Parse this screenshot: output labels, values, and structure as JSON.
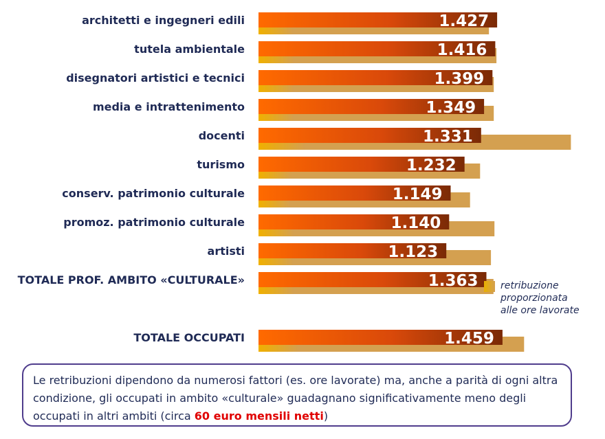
{
  "chart_data": {
    "type": "bar",
    "categories": [
      "architetti e ingegneri edili",
      "tutela ambientale",
      "disegnatori artistici e tecnici",
      "media e intrattenimento",
      "docenti",
      "turismo",
      "conserv. patrimonio culturale",
      "promoz. patrimonio culturale",
      "artisti",
      "TOTALE PROF. AMBITO «CULTURALE»",
      "TOTALE OCCUPATI"
    ],
    "series": [
      {
        "name": "",
        "values": [
          1427,
          1416,
          1399,
          1349,
          1331,
          1232,
          1149,
          1140,
          1123,
          1363,
          1459
        ],
        "labels": [
          "1.427",
          "1.416",
          "1.399",
          "1.349",
          "1.331",
          "1.232",
          "1.149",
          "1.140",
          "1.123",
          "1.363",
          "1.459"
        ],
        "color": "#ff6a00",
        "color_end": "#7a2a06"
      },
      {
        "name": "retribuzione proporzionata alle ore lavorate",
        "values": [
          1378,
          1423,
          1407,
          1407,
          1868,
          1325,
          1265,
          1411,
          1390,
          1405,
          1588
        ],
        "color": "#d4a050"
      }
    ],
    "title": "",
    "xlabel": "",
    "ylabel": "",
    "xlim": [
      0,
      2072
    ],
    "grid": false,
    "legend": "right"
  },
  "legend": {
    "lines": [
      "retribuzione",
      "proporzionata",
      "alle ore lavorate"
    ]
  },
  "note": {
    "text": "Le retribuzioni dipendono da numerosi fattori (es. ore lavorate) ma, anche a parità di ogni altra condizione, gli occupati in ambito «culturale» guadagnano significativamente meno degli occupati in altri ambiti (circa ",
    "highlight": "60 euro mensili netti",
    "end": ")"
  }
}
